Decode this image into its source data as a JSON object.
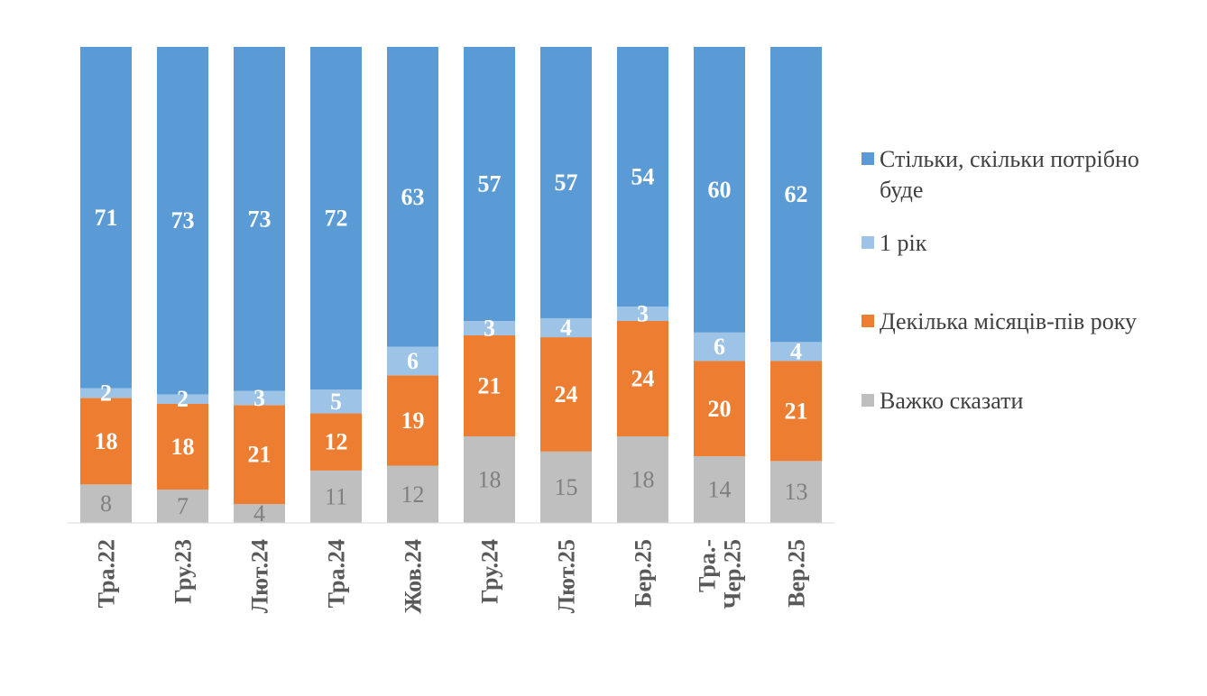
{
  "chart_data": {
    "type": "bar",
    "stacked": true,
    "normalized": true,
    "title": "",
    "xlabel": "",
    "ylabel": "",
    "ylim": [
      0,
      100
    ],
    "grid": false,
    "legend_position": "right",
    "categories": [
      "Тра.22",
      "Гру.23",
      "Лют.24",
      "Тра.24",
      "Жов.24",
      "Гру.24",
      "Лют.25",
      "Бер.25",
      "Тра.-Чер.25",
      "Вер.25"
    ],
    "category_lines": [
      [
        "Тра.22"
      ],
      [
        "Гру.23"
      ],
      [
        "Лют.24"
      ],
      [
        "Тра.24"
      ],
      [
        "Жов.24"
      ],
      [
        "Гру.24"
      ],
      [
        "Лют.25"
      ],
      [
        "Бер.25"
      ],
      [
        "Тра.-",
        "Чер.25"
      ],
      [
        "Вер.25"
      ]
    ],
    "series": [
      {
        "name": "Важко сказати",
        "color": "#BFBFBF",
        "label_color": "#7F7F7F",
        "values": [
          8,
          7,
          4,
          11,
          12,
          18,
          15,
          18,
          14,
          13
        ]
      },
      {
        "name": "Декілька місяців-пів року",
        "color": "#ED7D31",
        "label_color": "#FFFFFF",
        "values": [
          18,
          18,
          21,
          12,
          19,
          21,
          24,
          24,
          20,
          21
        ]
      },
      {
        "name": "1 рік",
        "color": "#9DC3E6",
        "label_color": "#FFFFFF",
        "values": [
          2,
          2,
          3,
          5,
          6,
          3,
          4,
          3,
          6,
          4
        ]
      },
      {
        "name": "Стільки, скільки потрібно буде",
        "color": "#5B9BD5",
        "label_color": "#FFFFFF",
        "values": [
          71,
          73,
          73,
          72,
          63,
          57,
          57,
          54,
          60,
          62
        ]
      }
    ]
  },
  "legend": [
    {
      "label": "Стільки, скільки потрібно буде",
      "color": "#5B9BD5"
    },
    {
      "label": "1 рік",
      "color": "#9DC3E6"
    },
    {
      "label": "Декілька місяців-пів року",
      "color": "#ED7D31"
    },
    {
      "label": "Важко сказати",
      "color": "#BFBFBF"
    }
  ]
}
